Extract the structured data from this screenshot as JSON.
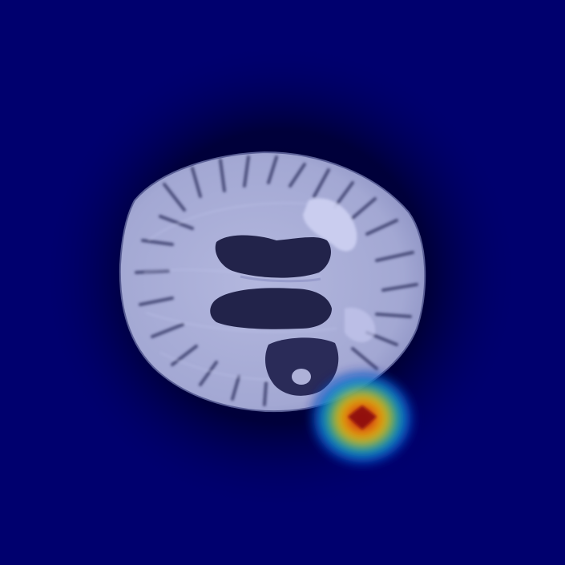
{
  "image": {
    "kind": "axial brain scan with heatmap overlay",
    "colors": {
      "background": "#00006e",
      "halo": "#000038",
      "brain_tissue": "#a7acd6",
      "brain_dark": "#2a2c52",
      "ventricle": "#20213f",
      "lesion_bright": "#c9ccf0",
      "heat_hot": "#9b1010",
      "heat_mid": "#e23a12",
      "heat_warm": "#f2c100",
      "heat_cool": "#2fb043",
      "heat_outer": "#0a5ad8"
    },
    "heatmap": {
      "colormap": "jet",
      "peak_intensity": 1.0,
      "hotspot_count": 1
    }
  }
}
